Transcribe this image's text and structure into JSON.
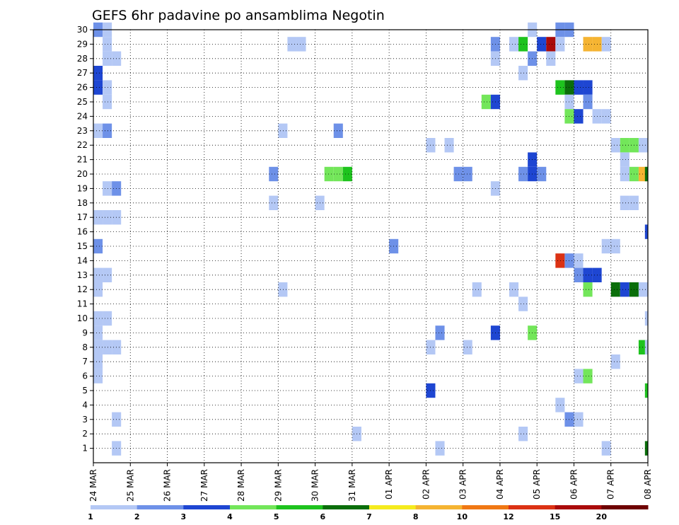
{
  "chart_data": {
    "type": "heatmap",
    "title": "GEFS 6hr padavine po ansamblima Negotin",
    "xlabel": "",
    "ylabel": "",
    "x_ticks": [
      "24 MAR",
      "25 MAR",
      "26 MAR",
      "27 MAR",
      "28 MAR",
      "29 MAR",
      "30 MAR",
      "31 MAR",
      "01 APR",
      "02 APR",
      "03 APR",
      "04 APR",
      "05 APR",
      "06 APR",
      "07 APR",
      "08 APR"
    ],
    "x_range_days": [
      0,
      15
    ],
    "time_step_hours": 6,
    "y_ticks": [
      1,
      2,
      3,
      4,
      5,
      6,
      7,
      8,
      9,
      10,
      11,
      12,
      13,
      14,
      15,
      16,
      17,
      18,
      19,
      20,
      21,
      22,
      23,
      24,
      25,
      26,
      27,
      28,
      29,
      30
    ],
    "y_range": [
      0,
      30
    ],
    "grid": true,
    "colorbar": {
      "labels": [
        "1",
        "2",
        "3",
        "4",
        "5",
        "6",
        "7",
        "8",
        "10",
        "12",
        "15",
        "20"
      ],
      "colors": [
        "#b4c8f5",
        "#6e91e8",
        "#1e46d2",
        "#73e65a",
        "#1ec31e",
        "#0a6e0a",
        "#f5eb1e",
        "#f5b432",
        "#f07814",
        "#dc3214",
        "#aa0a0a",
        "#6e0000"
      ]
    },
    "cells": [
      [
        30,
        0.0,
        1
      ],
      [
        30,
        0.25,
        0
      ],
      [
        30,
        11.75,
        0
      ],
      [
        30,
        12.5,
        1
      ],
      [
        30,
        12.75,
        1
      ],
      [
        29,
        0.25,
        0
      ],
      [
        29,
        5.25,
        0
      ],
      [
        29,
        5.5,
        0
      ],
      [
        29,
        10.75,
        1
      ],
      [
        29,
        11.25,
        0
      ],
      [
        29,
        11.5,
        4
      ],
      [
        29,
        12.0,
        2
      ],
      [
        29,
        12.25,
        10
      ],
      [
        29,
        12.5,
        0
      ],
      [
        29,
        13.25,
        7
      ],
      [
        29,
        13.5,
        7
      ],
      [
        29,
        13.75,
        0
      ],
      [
        28,
        0.25,
        0
      ],
      [
        28,
        0.5,
        0
      ],
      [
        28,
        10.75,
        0
      ],
      [
        28,
        11.75,
        1
      ],
      [
        28,
        12.25,
        0
      ],
      [
        27,
        0.0,
        2
      ],
      [
        27,
        11.5,
        0
      ],
      [
        26,
        0.0,
        2
      ],
      [
        26,
        0.25,
        0
      ],
      [
        26,
        12.5,
        4
      ],
      [
        26,
        12.75,
        5
      ],
      [
        26,
        13.0,
        2
      ],
      [
        26,
        13.25,
        2
      ],
      [
        25,
        0.25,
        0
      ],
      [
        25,
        10.5,
        3
      ],
      [
        25,
        10.75,
        2
      ],
      [
        25,
        12.75,
        0
      ],
      [
        25,
        13.25,
        1
      ],
      [
        24,
        12.75,
        3
      ],
      [
        24,
        13.0,
        2
      ],
      [
        24,
        13.5,
        0
      ],
      [
        24,
        13.75,
        0
      ],
      [
        23,
        0.0,
        0
      ],
      [
        23,
        0.25,
        1
      ],
      [
        23,
        5.0,
        0
      ],
      [
        23,
        6.5,
        1
      ],
      [
        22,
        9.0,
        0
      ],
      [
        22,
        9.5,
        0
      ],
      [
        22,
        14.0,
        0
      ],
      [
        22,
        14.25,
        3
      ],
      [
        22,
        14.5,
        3
      ],
      [
        22,
        14.75,
        0
      ],
      [
        21,
        11.75,
        2
      ],
      [
        21,
        14.25,
        0
      ],
      [
        20,
        4.75,
        1
      ],
      [
        20,
        6.25,
        3
      ],
      [
        20,
        6.5,
        3
      ],
      [
        20,
        6.75,
        4
      ],
      [
        20,
        9.75,
        1
      ],
      [
        20,
        10.0,
        1
      ],
      [
        20,
        11.5,
        1
      ],
      [
        20,
        11.75,
        2
      ],
      [
        20,
        12.0,
        1
      ],
      [
        20,
        14.25,
        0
      ],
      [
        20,
        14.5,
        3
      ],
      [
        20,
        14.75,
        7
      ],
      [
        20,
        14.92,
        5
      ],
      [
        19,
        0.25,
        0
      ],
      [
        19,
        0.5,
        1
      ],
      [
        19,
        10.75,
        0
      ],
      [
        18,
        4.75,
        0
      ],
      [
        18,
        6.0,
        0
      ],
      [
        18,
        14.25,
        0
      ],
      [
        18,
        14.5,
        0
      ],
      [
        17,
        0.0,
        0
      ],
      [
        17,
        0.25,
        0
      ],
      [
        17,
        0.5,
        0
      ],
      [
        16,
        14.92,
        2
      ],
      [
        15,
        0.0,
        1
      ],
      [
        15,
        8.0,
        1
      ],
      [
        15,
        13.75,
        0
      ],
      [
        15,
        14.0,
        0
      ],
      [
        14,
        12.5,
        9
      ],
      [
        14,
        12.75,
        1
      ],
      [
        14,
        13.0,
        0
      ],
      [
        13,
        0.0,
        0
      ],
      [
        13,
        0.25,
        0
      ],
      [
        13,
        13.0,
        1
      ],
      [
        13,
        13.25,
        2
      ],
      [
        13,
        13.5,
        2
      ],
      [
        12,
        0.0,
        0
      ],
      [
        12,
        5.0,
        0
      ],
      [
        12,
        10.25,
        0
      ],
      [
        12,
        11.25,
        0
      ],
      [
        12,
        13.25,
        3
      ],
      [
        12,
        14.0,
        5
      ],
      [
        12,
        14.25,
        2
      ],
      [
        12,
        14.5,
        5
      ],
      [
        12,
        14.75,
        0
      ],
      [
        11,
        11.5,
        0
      ],
      [
        10,
        0.0,
        0
      ],
      [
        10,
        0.25,
        0
      ],
      [
        10,
        14.92,
        0
      ],
      [
        9,
        0.0,
        0
      ],
      [
        9,
        9.25,
        1
      ],
      [
        9,
        10.75,
        2
      ],
      [
        9,
        11.75,
        3
      ],
      [
        8,
        0.0,
        0
      ],
      [
        8,
        0.25,
        0
      ],
      [
        8,
        0.5,
        0
      ],
      [
        8,
        9.0,
        0
      ],
      [
        8,
        10.0,
        0
      ],
      [
        8,
        14.75,
        4
      ],
      [
        8,
        14.92,
        0
      ],
      [
        7,
        0.0,
        0
      ],
      [
        7,
        14.0,
        0
      ],
      [
        6,
        0.0,
        0
      ],
      [
        6,
        13.0,
        0
      ],
      [
        6,
        13.25,
        3
      ],
      [
        5,
        9.0,
        2
      ],
      [
        5,
        14.92,
        4
      ],
      [
        4,
        12.5,
        0
      ],
      [
        3,
        0.5,
        0
      ],
      [
        3,
        12.75,
        1
      ],
      [
        3,
        13.0,
        0
      ],
      [
        2,
        7.0,
        0
      ],
      [
        2,
        11.5,
        0
      ],
      [
        1,
        0.5,
        0
      ],
      [
        1,
        9.25,
        0
      ],
      [
        1,
        13.75,
        0
      ],
      [
        1,
        14.92,
        5
      ]
    ]
  }
}
